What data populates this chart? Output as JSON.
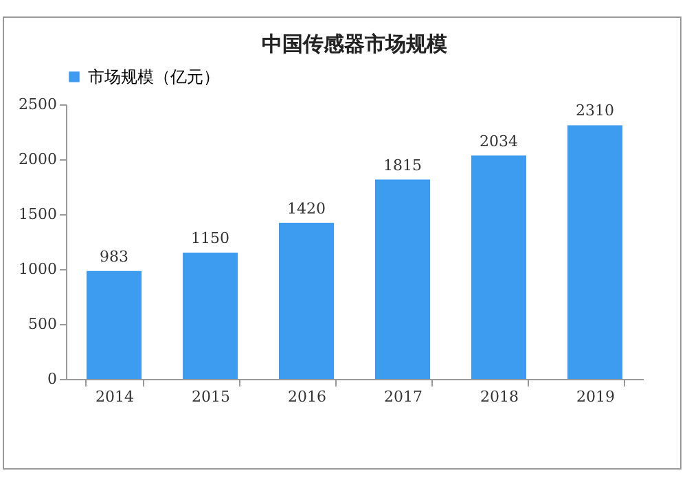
{
  "chart_data": {
    "type": "bar",
    "title": "中国传感器市场规模",
    "categories": [
      "2014",
      "2015",
      "2016",
      "2017",
      "2018",
      "2019"
    ],
    "series": [
      {
        "name": "市场规模（亿元）",
        "color": "#3d9bf0",
        "values": [
          983,
          1150,
          1420,
          1815,
          2034,
          2310
        ]
      }
    ],
    "ylim": [
      0,
      2500
    ],
    "yticks": [
      0,
      500,
      1000,
      1500,
      2000,
      2500
    ],
    "grid": false,
    "legend": "top",
    "data_labels": true
  }
}
